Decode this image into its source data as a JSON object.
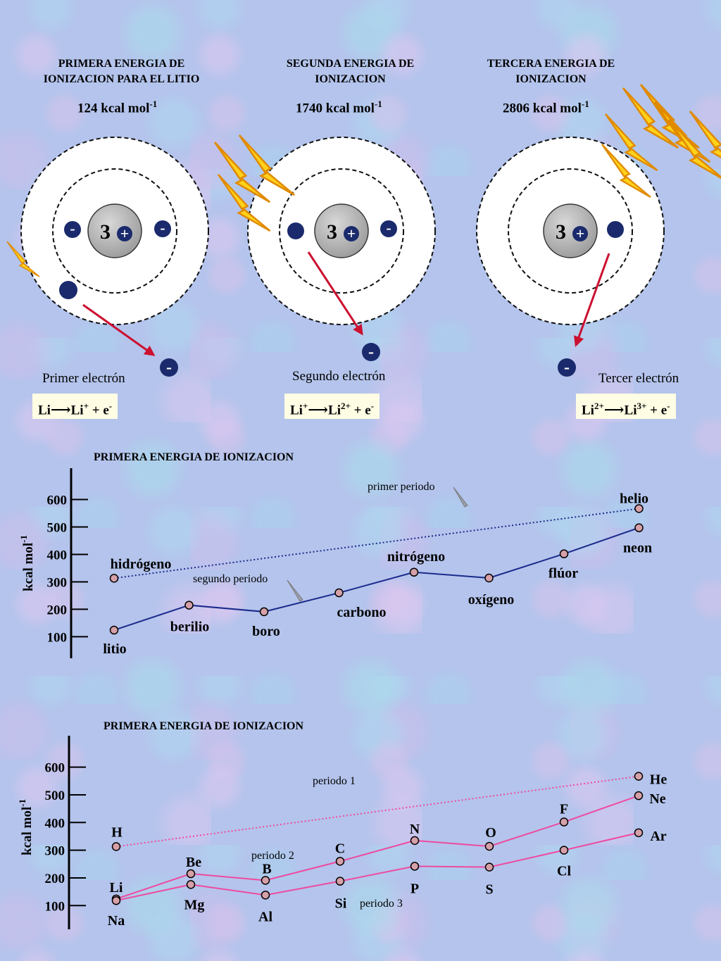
{
  "atoms": [
    {
      "title_line1": "PRIMERA ENERGIA DE",
      "title_line2": "IONIZACION PARA EL LITIO",
      "energy_value": "124 kcal mol",
      "energy_exp": "-1",
      "electron_label": "Primer electrón",
      "eq_left": "Li",
      "eq_left_sup": "",
      "eq_right": "Li",
      "eq_right_sup": "+",
      "eq_tail": " + e",
      "eq_tail_sup": "-"
    },
    {
      "title_line1": "SEGUNDA ENERGIA DE",
      "title_line2": "IONIZACION",
      "energy_value": "1740 kcal mol",
      "energy_exp": "-1",
      "electron_label": "Segundo electrón",
      "eq_left": "Li",
      "eq_left_sup": "+",
      "eq_right": "Li",
      "eq_right_sup": "2+",
      "eq_tail": " + e",
      "eq_tail_sup": "-"
    },
    {
      "title_line1": "TERCERA ENERGIA DE",
      "title_line2": "IONIZACION",
      "energy_value": "2806 kcal mol",
      "energy_exp": "-1",
      "electron_label": "Tercer electrón",
      "eq_left": "Li",
      "eq_left_sup": "2+",
      "eq_right": "Li",
      "eq_right_sup": "3+",
      "eq_tail": " + e",
      "eq_tail_sup": "-"
    }
  ],
  "nucleus_charge": "3",
  "plus_sign": "+",
  "minus_sign": "-",
  "colors": {
    "electron": "#1a2a6c",
    "arrow": "#cc1030",
    "lightning": "#ffd21a",
    "chart1_line": "#1a2a8c",
    "chart2_line": "#ee4aa0",
    "marker": "#d6a0a8"
  },
  "chart_data": [
    {
      "type": "line",
      "title": "PRIMERA  ENERGIA  DE  IONIZACION",
      "ylabel": "kcal mol",
      "ylabel_exp": "-1",
      "yticks": [
        100,
        200,
        300,
        400,
        500,
        600
      ],
      "ylim": [
        60,
        650
      ],
      "series": [
        {
          "name": "primer periodo",
          "style": "dotted",
          "points": [
            {
              "x": 0,
              "y": 313,
              "label": "hidrógeno"
            },
            {
              "x": 7,
              "y": 567,
              "label": "helio"
            }
          ]
        },
        {
          "name": "segundo periodo",
          "style": "solid",
          "points": [
            {
              "x": 0,
              "y": 124,
              "label": "litio"
            },
            {
              "x": 1,
              "y": 215,
              "label": "berilio"
            },
            {
              "x": 2,
              "y": 191,
              "label": "boro"
            },
            {
              "x": 3,
              "y": 260,
              "label": "carbono"
            },
            {
              "x": 4,
              "y": 335,
              "label": "nitrógeno"
            },
            {
              "x": 5,
              "y": 314,
              "label": "oxígeno"
            },
            {
              "x": 6,
              "y": 402,
              "label": "flúor"
            },
            {
              "x": 7,
              "y": 497,
              "label": "neon"
            }
          ]
        }
      ]
    },
    {
      "type": "line",
      "title": "PRIMERA ENERGIA DE  IONIZACION",
      "ylabel": "kcal mol",
      "ylabel_exp": "-1",
      "yticks": [
        100,
        200,
        300,
        400,
        500,
        600
      ],
      "ylim": [
        60,
        650
      ],
      "series": [
        {
          "name": "periodo 1",
          "style": "dotted",
          "points": [
            {
              "x": 0,
              "y": 313,
              "label": "H"
            },
            {
              "x": 7,
              "y": 567,
              "label": "He"
            }
          ]
        },
        {
          "name": "periodo 2",
          "style": "solid",
          "points": [
            {
              "x": 0,
              "y": 124,
              "label": "Li"
            },
            {
              "x": 1,
              "y": 215,
              "label": "Be"
            },
            {
              "x": 2,
              "y": 191,
              "label": "B"
            },
            {
              "x": 3,
              "y": 260,
              "label": "C"
            },
            {
              "x": 4,
              "y": 335,
              "label": "N"
            },
            {
              "x": 5,
              "y": 314,
              "label": "O"
            },
            {
              "x": 6,
              "y": 402,
              "label": "F"
            },
            {
              "x": 7,
              "y": 497,
              "label": "Ne"
            }
          ]
        },
        {
          "name": "periodo 3",
          "style": "solid",
          "points": [
            {
              "x": 0,
              "y": 118,
              "label": "Na"
            },
            {
              "x": 1,
              "y": 176,
              "label": "Mg"
            },
            {
              "x": 2,
              "y": 138,
              "label": "Al"
            },
            {
              "x": 3,
              "y": 188,
              "label": "Si"
            },
            {
              "x": 4,
              "y": 242,
              "label": "P"
            },
            {
              "x": 5,
              "y": 239,
              "label": "S"
            },
            {
              "x": 6,
              "y": 300,
              "label": "Cl"
            },
            {
              "x": 7,
              "y": 363,
              "label": "Ar"
            }
          ]
        }
      ]
    }
  ]
}
